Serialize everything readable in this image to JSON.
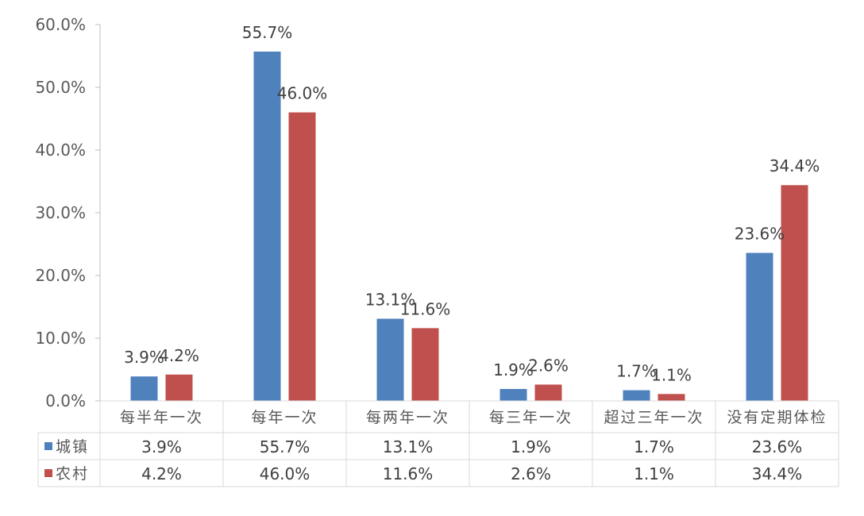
{
  "colors": {
    "城镇": "#4f81bd",
    "农村": "#c0504d",
    "axis": "#bfbfbf",
    "grid": "#d9d9d9"
  },
  "chart_data": {
    "type": "bar",
    "categories": [
      "每半年一次",
      "每年一次",
      "每两年一次",
      "每三年一次",
      "超过三年一次",
      "没有定期体检"
    ],
    "series": [
      {
        "name": "城镇",
        "values": [
          3.9,
          55.7,
          13.1,
          1.9,
          1.7,
          23.6
        ]
      },
      {
        "name": "农村",
        "values": [
          4.2,
          46.0,
          11.6,
          2.6,
          1.1,
          34.4
        ]
      }
    ],
    "ylim": [
      0,
      60
    ],
    "yticks": [
      0,
      10,
      20,
      30,
      40,
      50,
      60
    ],
    "value_suffix": "%",
    "decimals": 1,
    "data_labels": true,
    "data_table": true,
    "grid": false,
    "legend": "data-table-left"
  }
}
